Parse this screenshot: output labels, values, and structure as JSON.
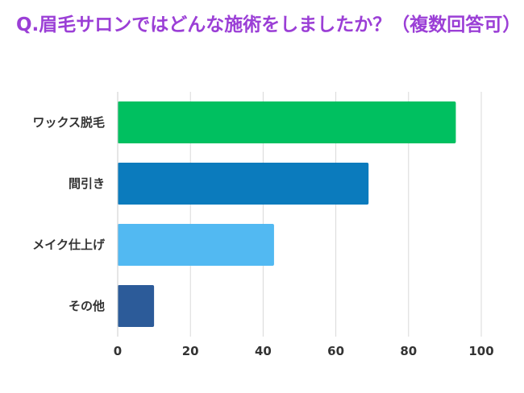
{
  "chart_data": {
    "type": "bar",
    "orientation": "horizontal",
    "title": "Q.眉毛サロンではどんな施術をしましたか？（複数回答可）",
    "categories": [
      "ワックス脱毛",
      "間引き",
      "メイク仕上げ",
      "その他"
    ],
    "values": [
      93,
      69,
      43,
      10
    ],
    "colors": [
      "#00c060",
      "#0b7bbd",
      "#52b9f2",
      "#2c5b99"
    ],
    "xlim": [
      0,
      100
    ],
    "xticks": [
      0,
      20,
      40,
      60,
      80,
      100
    ],
    "xlabel": "",
    "ylabel": "",
    "grid": true,
    "title_color": "#9b3fd6"
  }
}
